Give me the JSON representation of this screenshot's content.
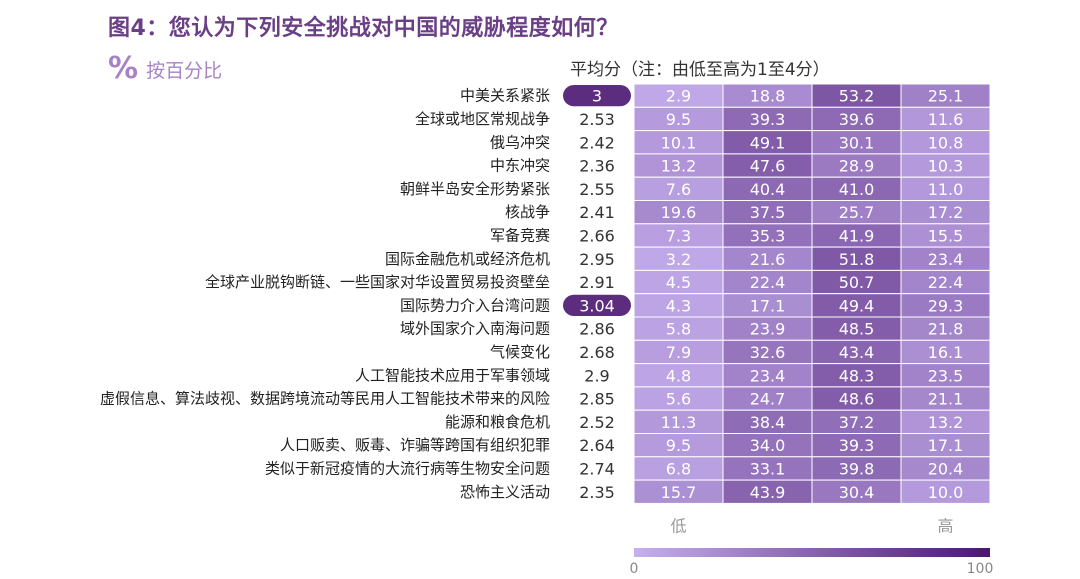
{
  "title": "图4：您认为下列安全挑战对中国的威胁程度如何？",
  "unit_icon": "percent-icon",
  "unit_label": "按百分比",
  "avg_header": "平均分（注：由低至高为1至4分）",
  "colors": {
    "title": "#6b3f86",
    "accent": "#a783c6",
    "highlight": "#5c2d7e",
    "heat_low": "#c6b0ee",
    "heat_high": "#4a1670"
  },
  "chart_data": {
    "type": "heatmap",
    "rows": [
      {
        "label": "中美关系紧张",
        "avg": "3",
        "highlight": true,
        "values": [
          2.9,
          18.8,
          53.2,
          25.1
        ]
      },
      {
        "label": "全球或地区常规战争",
        "avg": "2.53",
        "values": [
          9.5,
          39.3,
          39.6,
          11.6
        ]
      },
      {
        "label": "俄乌冲突",
        "avg": "2.42",
        "values": [
          10.1,
          49.1,
          30.1,
          10.8
        ]
      },
      {
        "label": "中东冲突",
        "avg": "2.36",
        "values": [
          13.2,
          47.6,
          28.9,
          10.3
        ]
      },
      {
        "label": "朝鲜半岛安全形势紧张",
        "avg": "2.55",
        "values": [
          7.6,
          40.4,
          41.0,
          11.0
        ]
      },
      {
        "label": "核战争",
        "avg": "2.41",
        "values": [
          19.6,
          37.5,
          25.7,
          17.2
        ]
      },
      {
        "label": "军备竞赛",
        "avg": "2.66",
        "values": [
          7.3,
          35.3,
          41.9,
          15.5
        ]
      },
      {
        "label": "国际金融危机或经济危机",
        "avg": "2.95",
        "values": [
          3.2,
          21.6,
          51.8,
          23.4
        ]
      },
      {
        "label": "全球产业脱钩断链、一些国家对华设置贸易投资壁垒",
        "avg": "2.91",
        "values": [
          4.5,
          22.4,
          50.7,
          22.4
        ]
      },
      {
        "label": "国际势力介入台湾问题",
        "avg": "3.04",
        "highlight": true,
        "values": [
          4.3,
          17.1,
          49.4,
          29.3
        ]
      },
      {
        "label": "域外国家介入南海问题",
        "avg": "2.86",
        "values": [
          5.8,
          23.9,
          48.5,
          21.8
        ]
      },
      {
        "label": "气候变化",
        "avg": "2.68",
        "values": [
          7.9,
          32.6,
          43.4,
          16.1
        ]
      },
      {
        "label": "人工智能技术应用于军事领域",
        "avg": "2.9",
        "values": [
          4.8,
          23.4,
          48.3,
          23.5
        ]
      },
      {
        "label": "虚假信息、算法歧视、数据跨境流动等民用人工智能技术带来的风险",
        "avg": "2.85",
        "values": [
          5.6,
          24.7,
          48.6,
          21.1
        ]
      },
      {
        "label": "能源和粮食危机",
        "avg": "2.52",
        "values": [
          11.3,
          38.4,
          37.2,
          13.2
        ]
      },
      {
        "label": "人口贩卖、贩毒、诈骗等跨国有组织犯罪",
        "avg": "2.64",
        "values": [
          9.5,
          34.0,
          39.3,
          17.1
        ]
      },
      {
        "label": "类似于新冠疫情的大流行病等生物安全问题",
        "avg": "2.74",
        "values": [
          6.8,
          33.1,
          39.8,
          20.4
        ]
      },
      {
        "label": "恐怖主义活动",
        "avg": "2.35",
        "values": [
          15.7,
          43.9,
          30.4,
          10.0
        ]
      }
    ],
    "x_low_label": "低",
    "x_high_label": "高",
    "color_scale": {
      "min": 0,
      "max": 100,
      "min_label": "0",
      "max_label": "100"
    }
  }
}
